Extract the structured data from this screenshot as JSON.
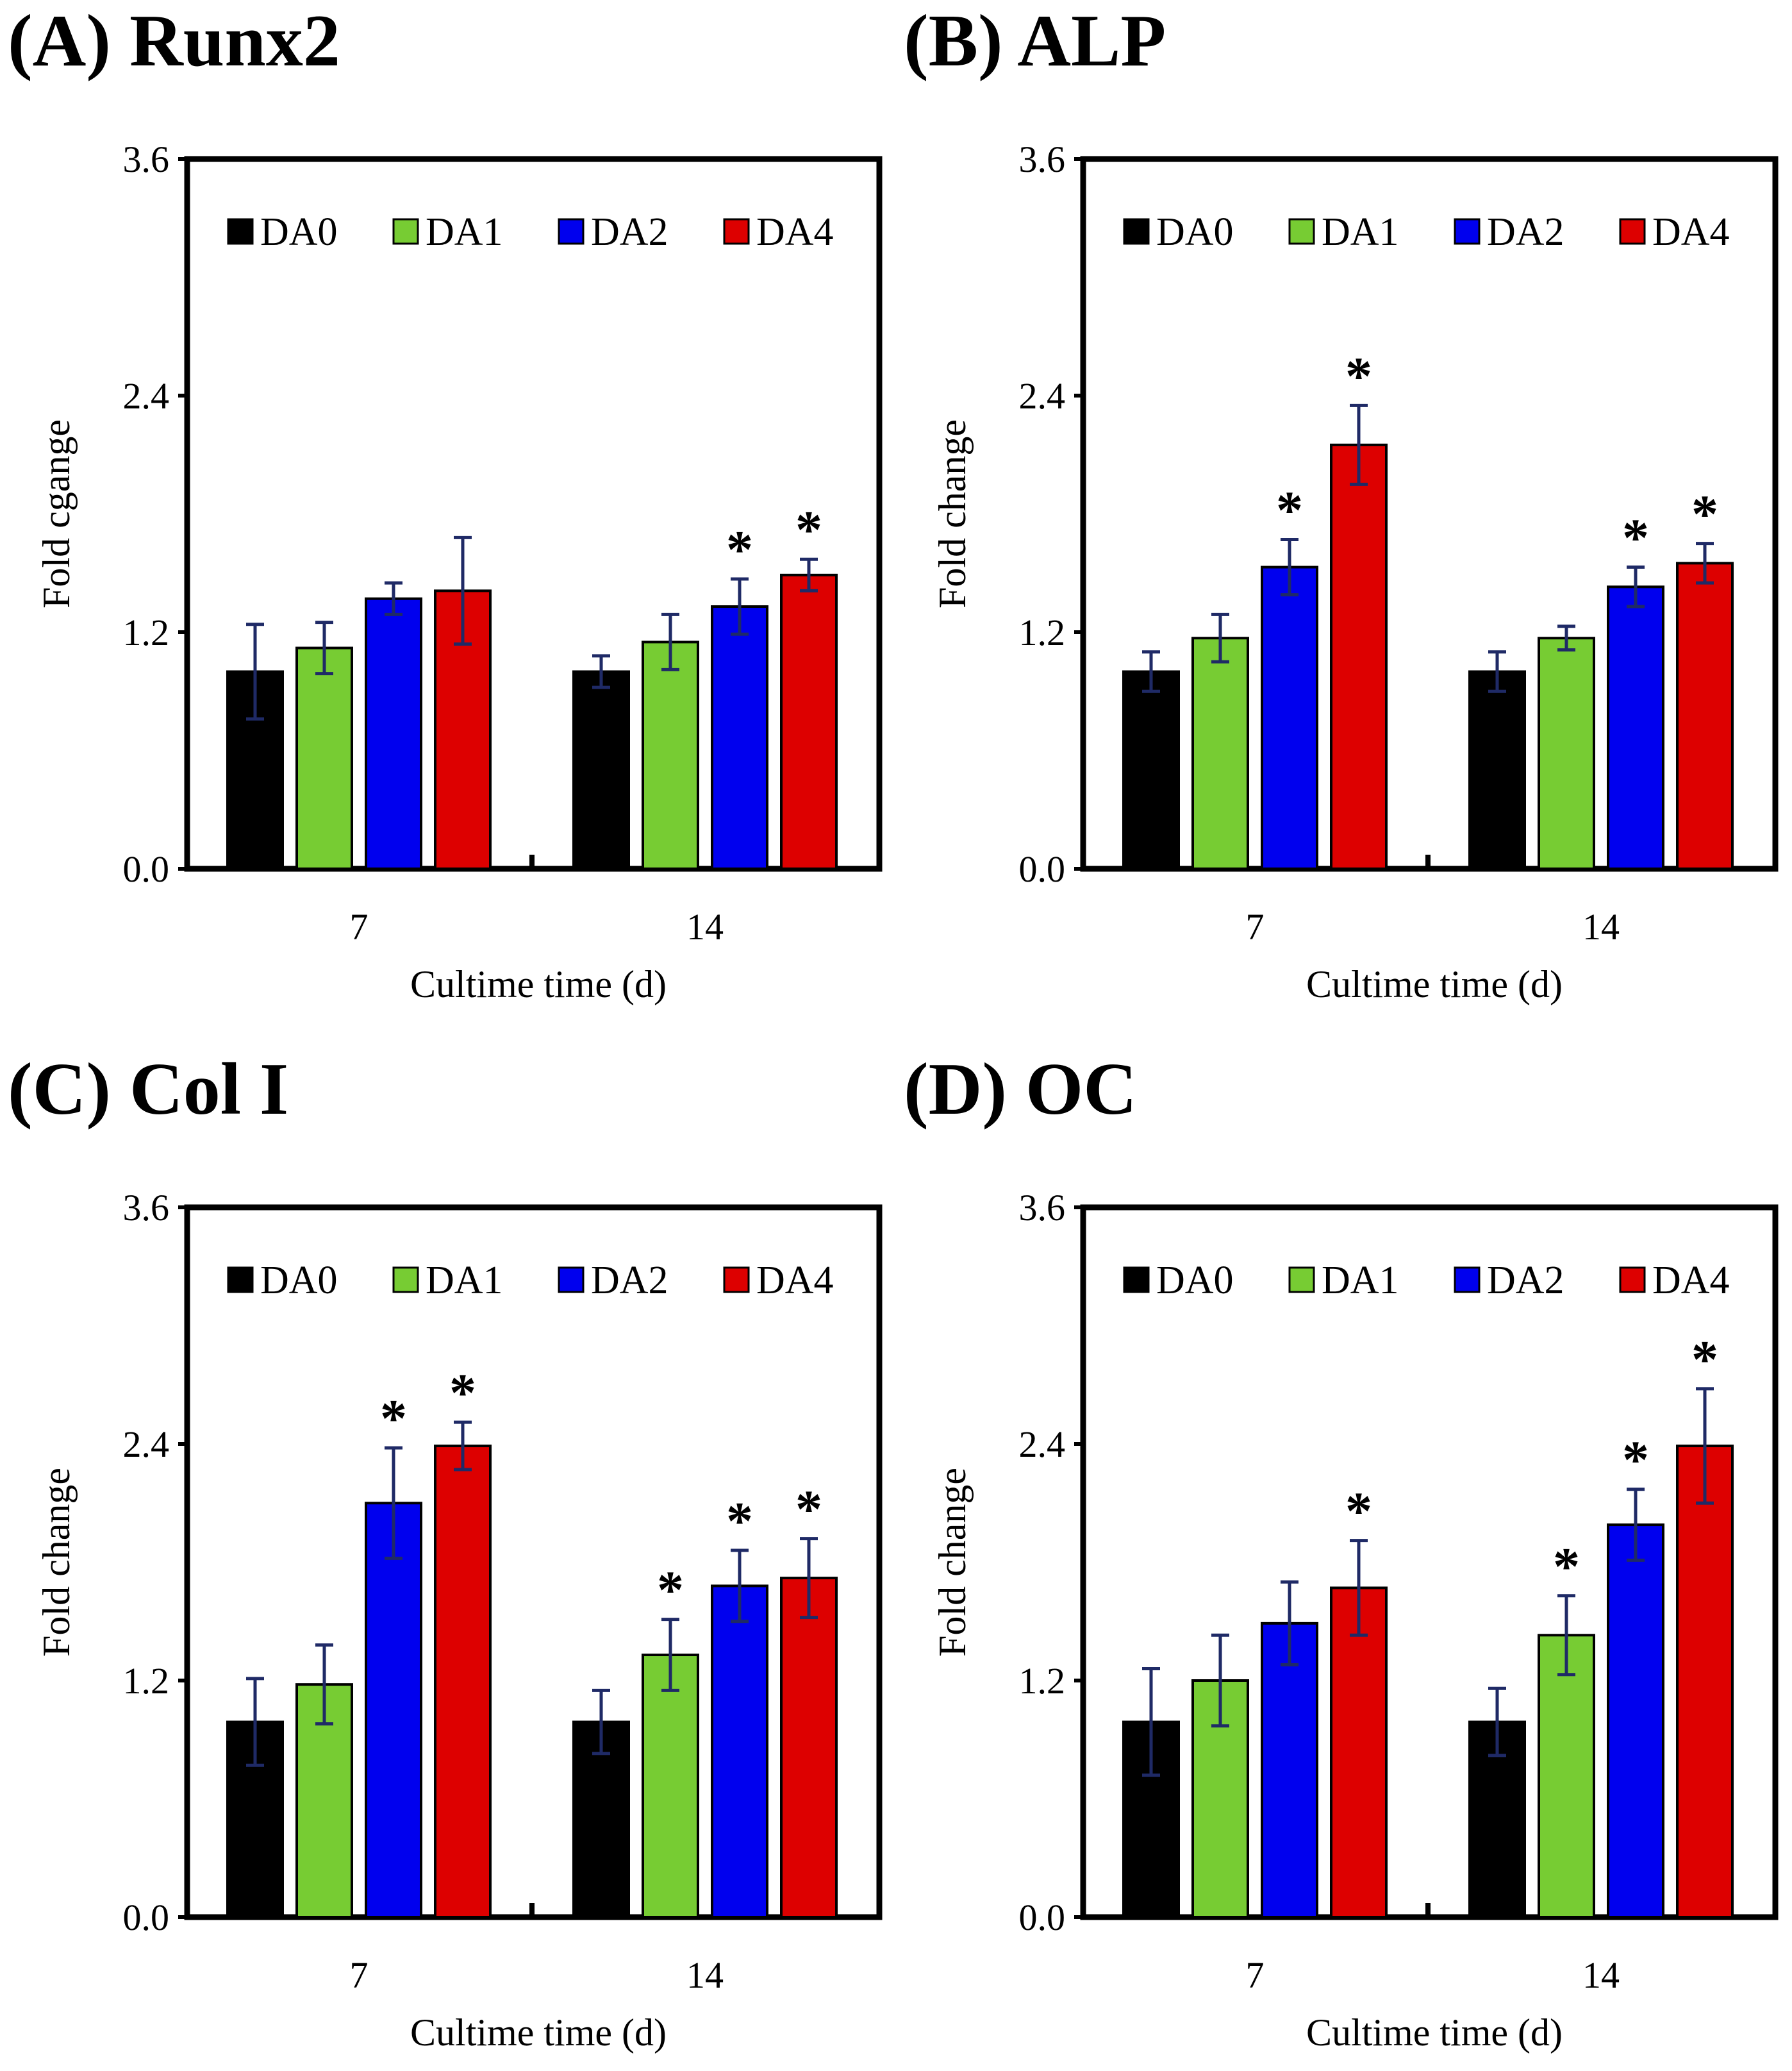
{
  "colors": {
    "DA0": "#000000",
    "DA1": "#77cc33",
    "DA2": "#0000ee",
    "DA4": "#dd0000",
    "error_bar": "#1f2a66"
  },
  "chart_data": [
    {
      "type": "bar",
      "panel_label": "(A) Runx2",
      "ylabel": "Fold cgange",
      "xlabel": "Cultime time (d)",
      "categories": [
        "7",
        "14"
      ],
      "ylim": [
        0,
        3.6
      ],
      "yticks": [
        "0.0",
        "1.2",
        "2.4",
        "3.6"
      ],
      "legend_position": "top",
      "series": [
        {
          "name": "DA0",
          "values": [
            1.0,
            1.0
          ],
          "errors": [
            0.24,
            0.08
          ]
        },
        {
          "name": "DA1",
          "values": [
            1.12,
            1.15
          ],
          "errors": [
            0.13,
            0.14
          ]
        },
        {
          "name": "DA2",
          "values": [
            1.37,
            1.33
          ],
          "errors": [
            0.08,
            0.14
          ]
        },
        {
          "name": "DA4",
          "values": [
            1.41,
            1.49
          ],
          "errors": [
            0.27,
            0.08
          ]
        }
      ],
      "significance": {
        "DA2": [
          false,
          true
        ],
        "DA4": [
          false,
          true
        ]
      },
      "significance_mark": "*"
    },
    {
      "type": "bar",
      "panel_label": "(B) ALP",
      "ylabel": "Fold change",
      "xlabel": "Cultime time (d)",
      "categories": [
        "7",
        "14"
      ],
      "ylim": [
        0,
        3.6
      ],
      "yticks": [
        "0.0",
        "1.2",
        "2.4",
        "3.6"
      ],
      "legend_position": "top",
      "series": [
        {
          "name": "DA0",
          "values": [
            1.0,
            1.0
          ],
          "errors": [
            0.1,
            0.1
          ]
        },
        {
          "name": "DA1",
          "values": [
            1.17,
            1.17
          ],
          "errors": [
            0.12,
            0.06
          ]
        },
        {
          "name": "DA2",
          "values": [
            1.53,
            1.43
          ],
          "errors": [
            0.14,
            0.1
          ]
        },
        {
          "name": "DA4",
          "values": [
            2.15,
            1.55
          ],
          "errors": [
            0.2,
            0.1
          ]
        }
      ],
      "significance": {
        "DA2": [
          true,
          true
        ],
        "DA4": [
          true,
          true
        ]
      },
      "significance_mark": "*"
    },
    {
      "type": "bar",
      "panel_label": "(C) Col I",
      "ylabel": "Fold change",
      "xlabel": "Cultime time (d)",
      "categories": [
        "7",
        "14"
      ],
      "ylim": [
        0,
        3.6
      ],
      "yticks": [
        "0.0",
        "1.2",
        "2.4",
        "3.6"
      ],
      "legend_position": "top",
      "series": [
        {
          "name": "DA0",
          "values": [
            0.99,
            0.99
          ],
          "errors": [
            0.22,
            0.16
          ]
        },
        {
          "name": "DA1",
          "values": [
            1.18,
            1.33
          ],
          "errors": [
            0.2,
            0.18
          ]
        },
        {
          "name": "DA2",
          "values": [
            2.1,
            1.68
          ],
          "errors": [
            0.28,
            0.18
          ]
        },
        {
          "name": "DA4",
          "values": [
            2.39,
            1.72
          ],
          "errors": [
            0.12,
            0.2
          ]
        }
      ],
      "significance": {
        "DA1": [
          false,
          true
        ],
        "DA2": [
          true,
          true
        ],
        "DA4": [
          true,
          true
        ]
      },
      "significance_mark": "*"
    },
    {
      "type": "bar",
      "panel_label": "(D) OC",
      "ylabel": "Fold change",
      "xlabel": "Cultime time (d)",
      "categories": [
        "7",
        "14"
      ],
      "ylim": [
        0,
        3.6
      ],
      "yticks": [
        "0.0",
        "1.2",
        "2.4",
        "3.6"
      ],
      "legend_position": "top",
      "series": [
        {
          "name": "DA0",
          "values": [
            0.99,
            0.99
          ],
          "errors": [
            0.27,
            0.17
          ]
        },
        {
          "name": "DA1",
          "values": [
            1.2,
            1.43
          ],
          "errors": [
            0.23,
            0.2
          ]
        },
        {
          "name": "DA2",
          "values": [
            1.49,
            1.99
          ],
          "errors": [
            0.21,
            0.18
          ]
        },
        {
          "name": "DA4",
          "values": [
            1.67,
            2.39
          ],
          "errors": [
            0.24,
            0.29
          ]
        }
      ],
      "significance": {
        "DA2": [
          false,
          true
        ],
        "DA4": [
          true,
          true
        ],
        "DA1": [
          false,
          true
        ]
      },
      "significance_mark": "*"
    }
  ]
}
